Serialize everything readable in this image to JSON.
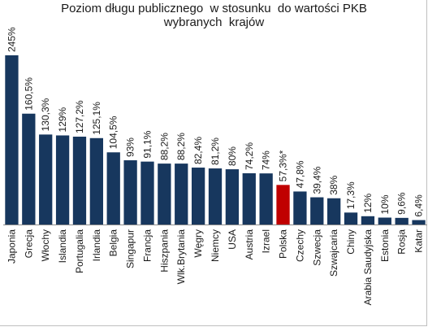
{
  "chart_data": {
    "type": "bar",
    "title_lines": [
      "Poziom długu publicznego  w stosunku  do wartości PKB",
      "wybranych  krajów"
    ],
    "xlabel": "",
    "ylabel": "",
    "ylim": [
      0,
      245
    ],
    "grid": false,
    "legend": "none",
    "bar_color": "#17375e",
    "highlight_color": "#c00000",
    "categories": [
      "Japonia",
      "Grecja",
      "Włochy",
      "Islandia",
      "Portugalia",
      "Irlandia",
      "Belgia",
      "Singapur",
      "Francja",
      "Hiszpania",
      "Wlk.Brytania",
      "Węgry",
      "Niemcy",
      "USA",
      "Austria",
      "Izrael",
      "Polska",
      "Czechy",
      "Szwecja",
      "Szwajcaria",
      "Chiny",
      "Arabia Saudyjska",
      "Estonia",
      "Rosja",
      "Katar"
    ],
    "values": [
      245,
      160.5,
      130.3,
      129,
      127.2,
      125.1,
      104.5,
      93,
      91.1,
      88.2,
      88.2,
      82.4,
      81.2,
      80,
      74.2,
      74,
      57.3,
      47.8,
      39.4,
      38,
      17.3,
      12,
      10,
      9.6,
      6.4
    ],
    "value_labels": [
      "245%",
      "160,5%",
      "130,3%",
      "129%",
      "127,2%",
      "125,1%",
      "104,5%",
      "93%",
      "91,1%",
      "88,2%",
      "88,2%",
      "82,4%",
      "81,2%",
      "80%",
      "74,2%",
      "74%",
      "57,3%*",
      "47,8%",
      "39,4%",
      "38%",
      "17,3%",
      "12%",
      "10%",
      "9,6%",
      "6,4%"
    ],
    "highlight_index": 16
  }
}
